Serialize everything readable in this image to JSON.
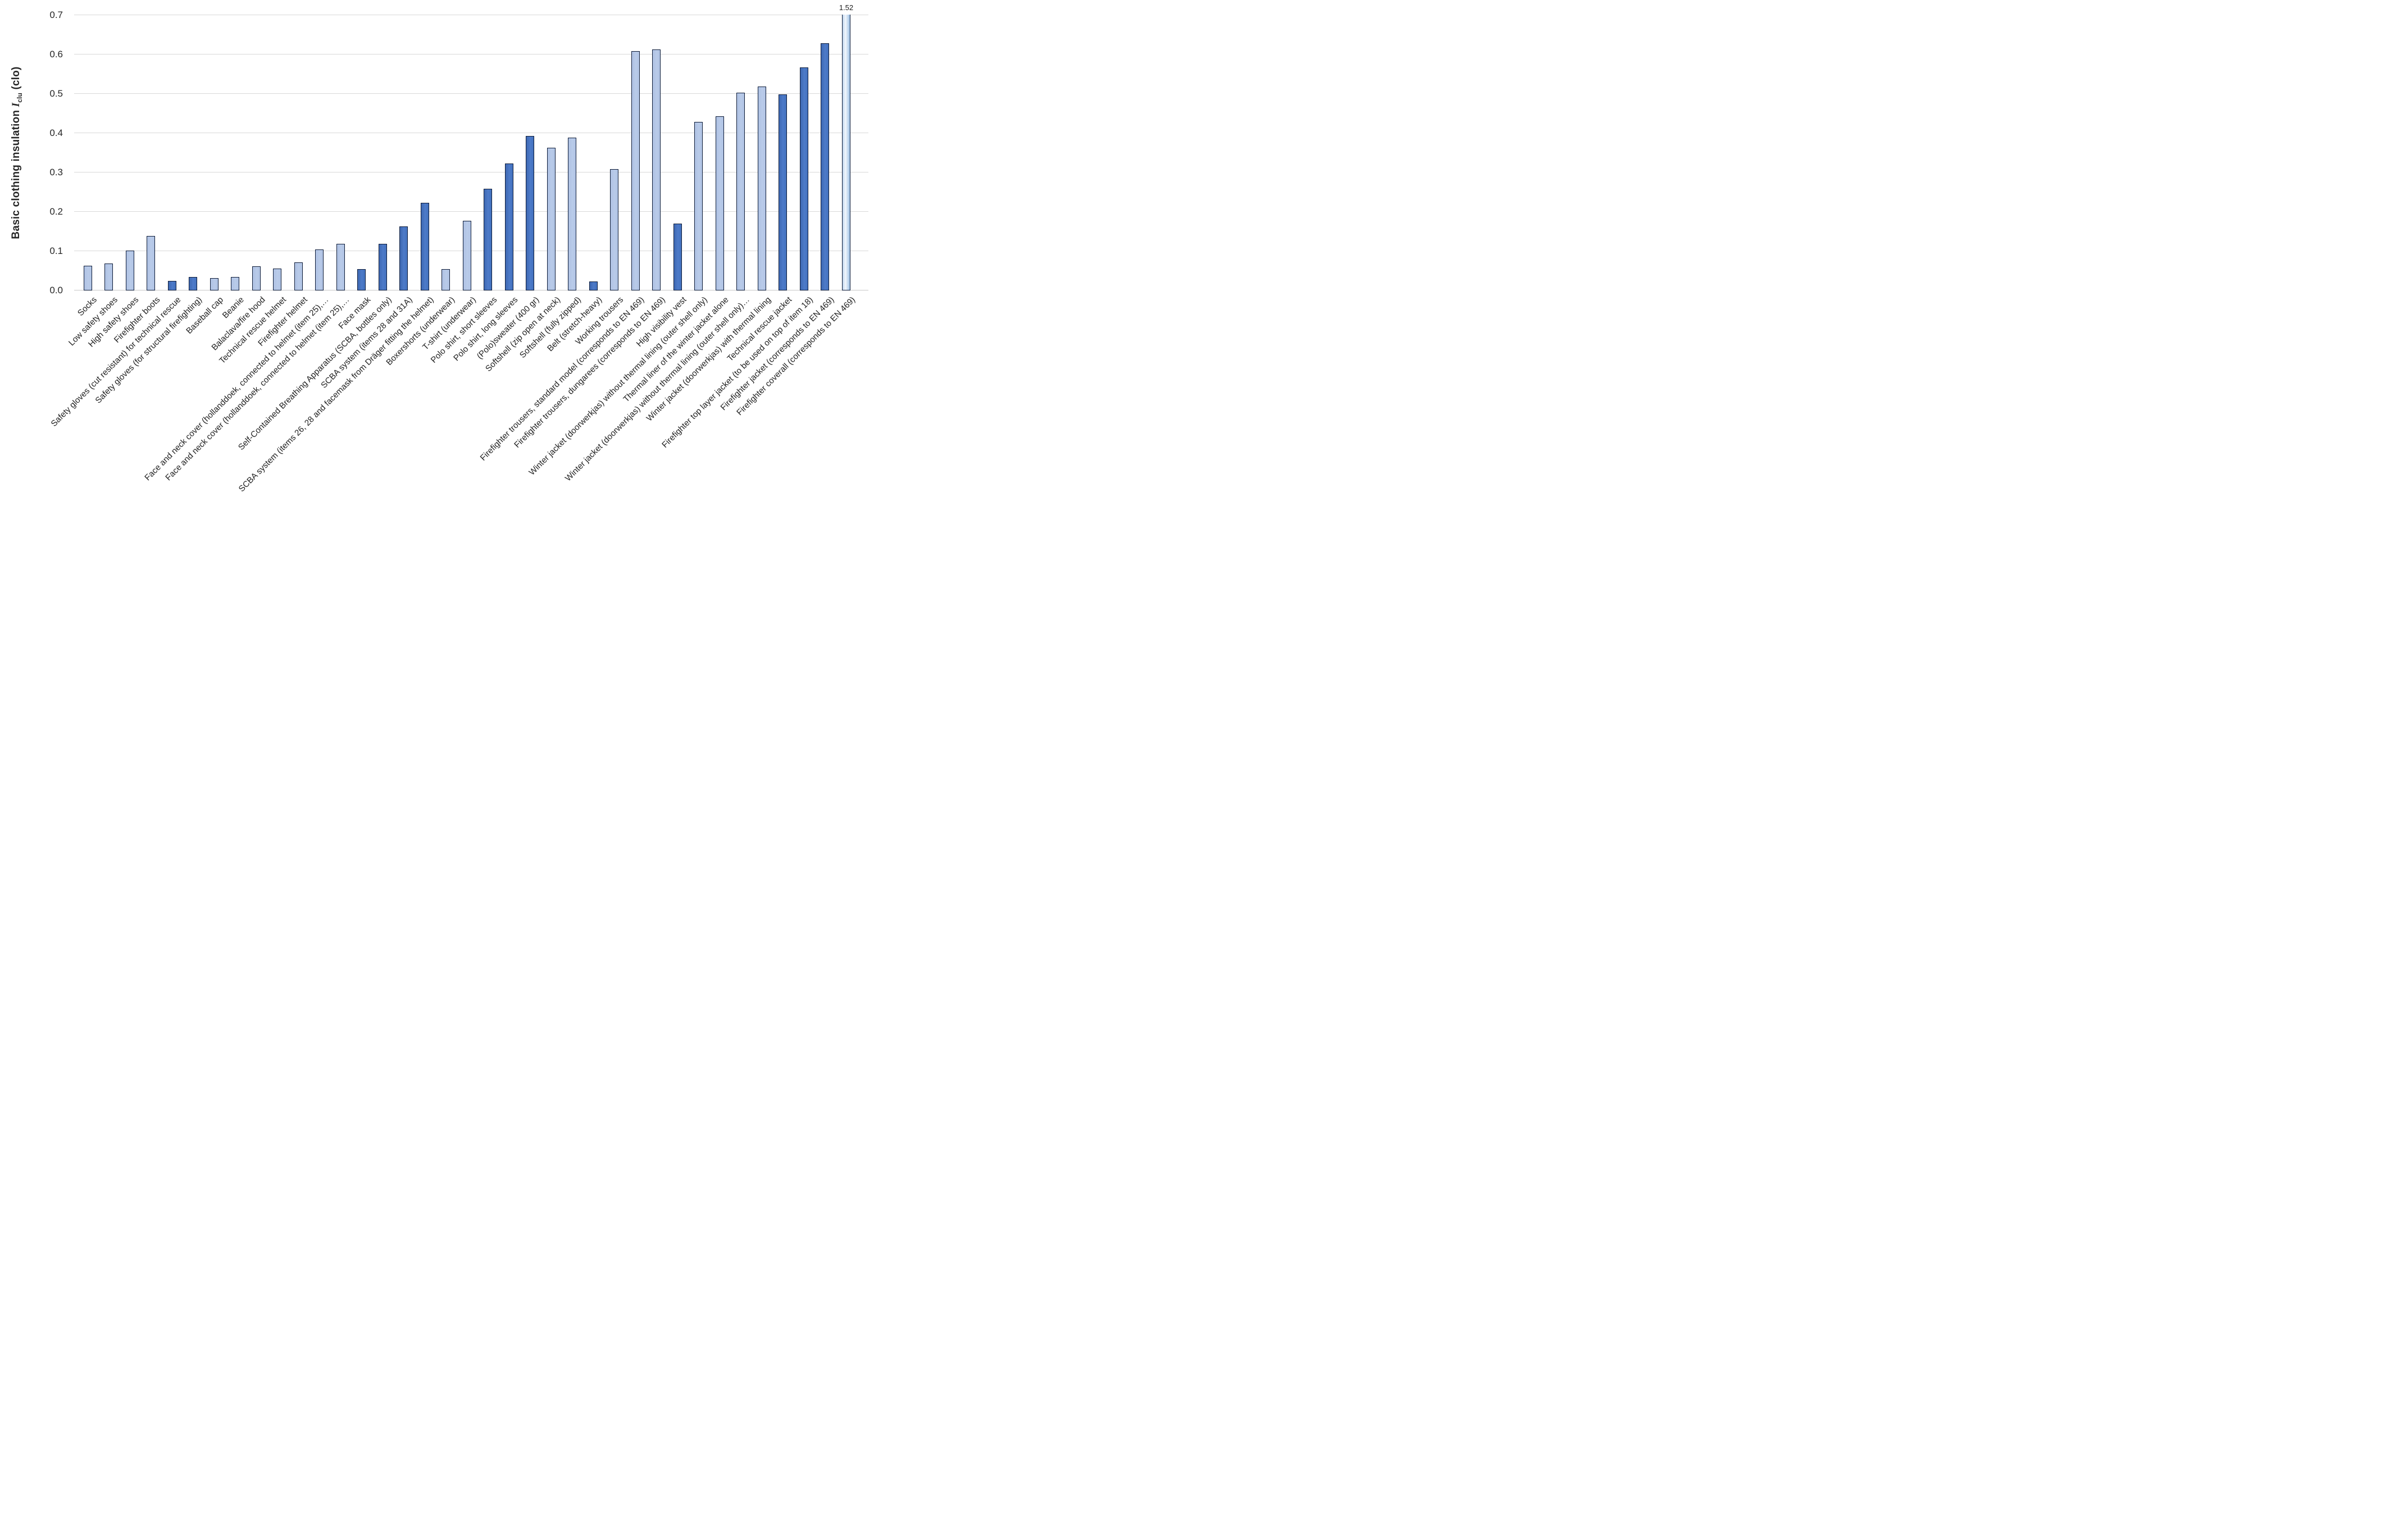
{
  "chart_data": {
    "type": "bar",
    "title": "",
    "ylabel_parts": {
      "prefix": "Basic clothing insulation ",
      "symbol": "I",
      "subscript": "clu",
      "suffix": " (clo)"
    },
    "ylim": [
      0,
      0.7
    ],
    "yticks": [
      "0.0",
      "0.1",
      "0.2",
      "0.3",
      "0.4",
      "0.5",
      "0.6",
      "0.7"
    ],
    "grid": true,
    "legend_position": "none",
    "categories": [
      "Socks",
      "Low safety shoes",
      "High safety shoes",
      "Firefighter boots",
      "Safety gloves (cut resistant) for technical rescue",
      "Safety gloves (for structural firefighting)",
      "Baseball cap",
      "Beanie",
      "Balaclava/fire hood",
      "Technical rescue helmet",
      "Firefighter helmet",
      "Face and neck cover (hollanddoek, connected to helmet (item 25),…",
      "Face and neck cover (hollanddoek, connected to helmet (item 25),…",
      "Face mask",
      "Self-Contained Breathing Apparatus (SCBA, bottles only)",
      "SCBA system (items 28 and 31A)",
      "SCBA system (items 26, 28 and facemask from Dräger fitting the helmet)",
      "Boxershorts (underwear)",
      "T-shirt (underwear)",
      "Polo shirt, short sleeves",
      "Polo shirt, long sleeves",
      "(Polo)sweater (400 gr)",
      "Softshell (zip open at neck)",
      "Softshell (fully zipped)",
      "Belt (stretch-heavy)",
      "Working trousers",
      "Firefighter trousers, standard model (corresponds to EN 469)",
      "Firefighter trousers, dungarees (corresponds to EN 469)",
      "High visibility vest",
      "Winter jacket (doorwerkjas) without thermal lining (outer shell only)",
      "Thermal liner of the winter jacket alone",
      "Winter jacket (doorwerkjas) without thermal lining (outer shell only)…",
      "Winter jacket (doorwerkjas) with thermal lining",
      "Technical rescue jacket",
      "Firefighter top layer jacket (to be used on top of item 18)",
      "Firefighter jacket (corresponds to EN 469)",
      "Firefighter coverall (corresponds to EN 469)"
    ],
    "values": [
      0.06,
      0.065,
      0.098,
      0.135,
      0.021,
      0.032,
      0.028,
      0.031,
      0.059,
      0.053,
      0.068,
      0.102,
      0.116,
      0.052,
      0.115,
      0.16,
      0.22,
      0.051,
      0.175,
      0.255,
      0.32,
      0.39,
      0.36,
      0.385,
      0.02,
      0.305,
      0.605,
      0.61,
      0.167,
      0.425,
      0.44,
      0.5,
      0.515,
      0.495,
      0.565,
      0.625,
      1.52
    ],
    "shades": [
      "light",
      "light",
      "light",
      "light",
      "dark",
      "dark",
      "light",
      "light",
      "light",
      "light",
      "light",
      "light",
      "light",
      "dark",
      "dark",
      "dark",
      "dark",
      "light",
      "light",
      "dark",
      "dark",
      "dark",
      "light",
      "light",
      "dark",
      "light",
      "light",
      "light",
      "dark",
      "light",
      "light",
      "light",
      "light",
      "dark",
      "dark",
      "dark",
      "light"
    ],
    "clipped_bars": [
      36
    ],
    "annotations": [
      {
        "category_index": 36,
        "text": "1.52"
      }
    ],
    "colors": {
      "light_fill": "#B4C6E7",
      "dark_fill": "#4472C4",
      "bar_border": "#0D1B38",
      "gridline": "#D9D9D9",
      "axis_text": "#262626"
    }
  }
}
